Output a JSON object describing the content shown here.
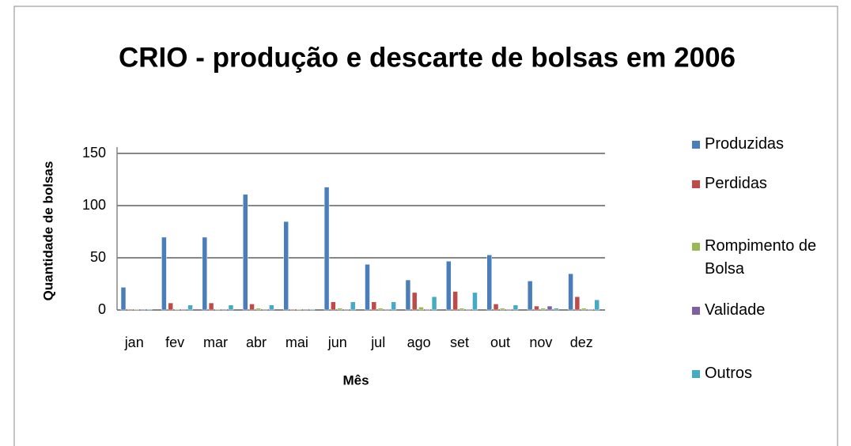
{
  "chart_data": {
    "type": "bar",
    "title": "CRIO - produção e descarte de bolsas em 2006",
    "x_label": "Mês",
    "y_label": "Quantidade de bolsas",
    "categories": [
      "jan",
      "fev",
      "mar",
      "abr",
      "mai",
      "jun",
      "jul",
      "ago",
      "set",
      "out",
      "nov",
      "dez"
    ],
    "series": [
      {
        "name": "Produzidas",
        "color": "#4a7ebb",
        "values": [
          21,
          69,
          69,
          110,
          84,
          117,
          43,
          28,
          46,
          52,
          27,
          34
        ]
      },
      {
        "name": "Perdidas",
        "color": "#be4b48",
        "values": [
          0,
          6,
          6,
          5,
          0,
          7,
          7,
          16,
          17,
          5,
          3,
          12
        ]
      },
      {
        "name": "Rompimento de Bolsa",
        "color": "#98b954",
        "values": [
          0,
          0,
          0,
          1,
          0,
          1,
          1,
          2,
          1,
          1,
          1,
          1
        ]
      },
      {
        "name": "Validade",
        "color": "#7d60a0",
        "values": [
          0,
          0,
          0,
          0,
          0,
          0,
          0,
          0,
          0,
          0,
          3,
          0
        ]
      },
      {
        "name": "Outros",
        "color": "#46aac5",
        "values": [
          0,
          4,
          4,
          4,
          0,
          7,
          7,
          12,
          16,
          4,
          1,
          9
        ]
      }
    ],
    "ylim": [
      0,
      150
    ],
    "yticks": [
      0,
      50,
      100,
      150
    ],
    "grid": true,
    "legend": "right"
  }
}
